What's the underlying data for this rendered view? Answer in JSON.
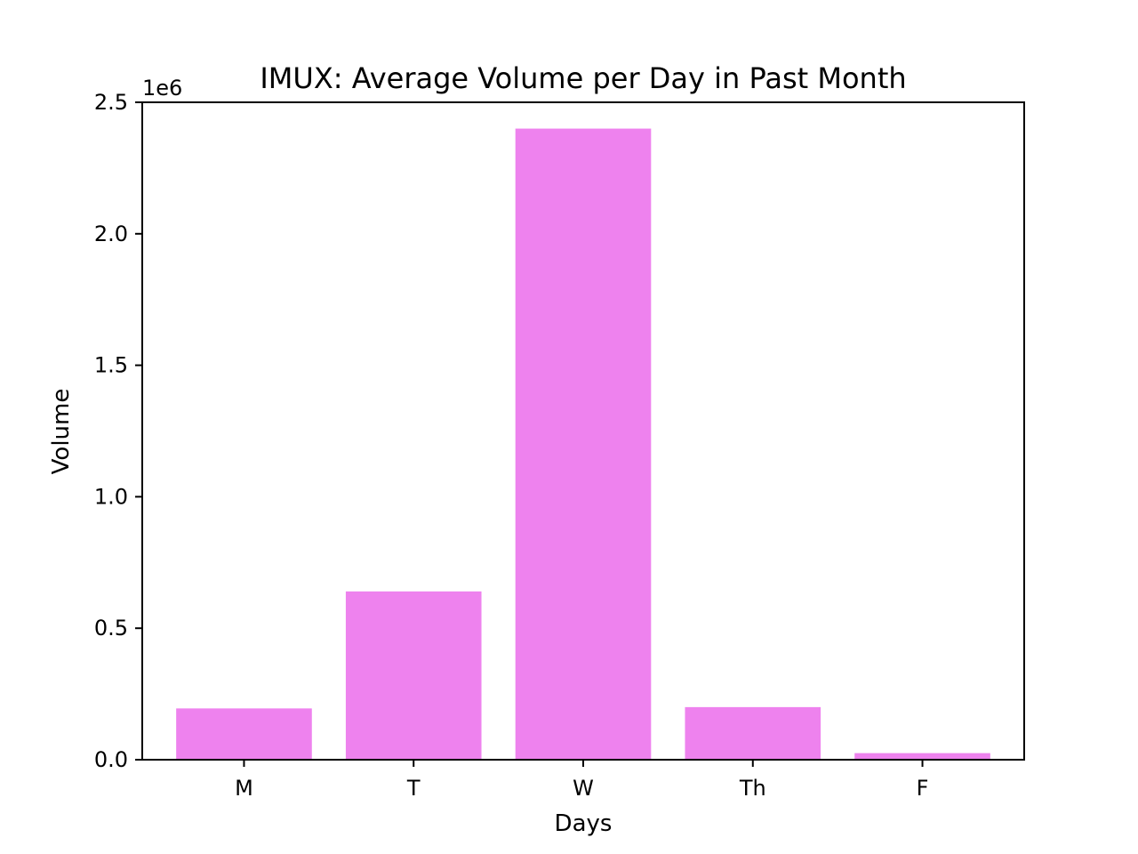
{
  "chart_data": {
    "type": "bar",
    "title": "IMUX: Average Volume per Day in Past Month",
    "xlabel": "Days",
    "ylabel": "Volume",
    "y_offset_label": "1e6",
    "categories": [
      "M",
      "T",
      "W",
      "Th",
      "F"
    ],
    "values": [
      195000,
      640000,
      2400000,
      200000,
      25000
    ],
    "ylim": [
      0,
      2500000
    ],
    "y_ticks": [
      0,
      500000,
      1000000,
      1500000,
      2000000,
      2500000
    ],
    "y_tick_labels": [
      "0.0",
      "0.5",
      "1.0",
      "1.5",
      "2.0",
      "2.5"
    ],
    "bar_color": "#ee82ee",
    "grid": false
  }
}
